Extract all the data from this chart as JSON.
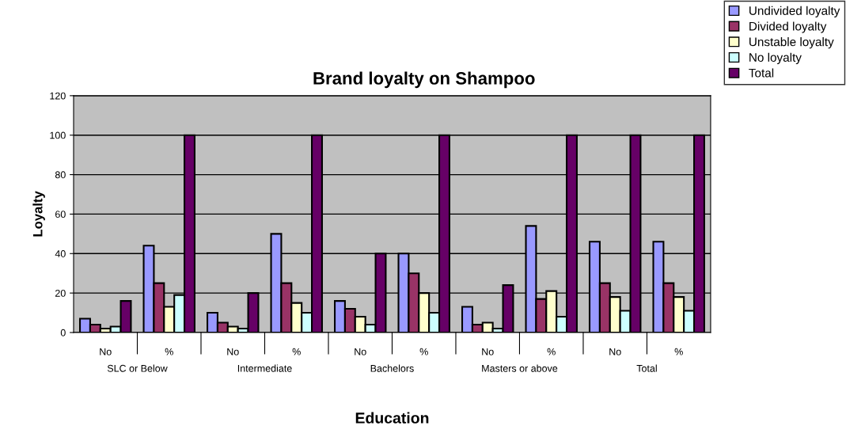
{
  "chart_data": {
    "type": "bar",
    "title": "Brand loyalty on Shampoo",
    "xlabel": "Education",
    "ylabel": "Loyalty",
    "categories": [
      "No",
      "%",
      "No",
      "%",
      "No",
      "%",
      "No",
      "%",
      "No",
      "%"
    ],
    "annotations": [
      "SLC or Below",
      "Intermediate",
      "Bachelors",
      "Masters or above",
      "Total"
    ],
    "series": [
      {
        "name": "Undivided loyalty",
        "color": "#9999ff",
        "values": [
          7,
          44,
          10,
          50,
          16,
          40,
          13,
          54,
          46,
          46
        ]
      },
      {
        "name": "Divided loyalty",
        "color": "#993366",
        "values": [
          4,
          25,
          5,
          25,
          12,
          30,
          4,
          17,
          25,
          25
        ]
      },
      {
        "name": "Unstable loyalty",
        "color": "#ffffcc",
        "values": [
          2,
          13,
          3,
          15,
          8,
          20,
          5,
          21,
          18,
          18
        ]
      },
      {
        "name": "No loyalty",
        "color": "#ccffff",
        "values": [
          3,
          19,
          2,
          10,
          4,
          10,
          2,
          8,
          11,
          11
        ]
      },
      {
        "name": "Total",
        "color": "#660066",
        "values": [
          16,
          100,
          20,
          100,
          40,
          100,
          24,
          100,
          100,
          100
        ]
      }
    ],
    "ylim": [
      0,
      120
    ],
    "yticks": [
      0,
      20,
      40,
      60,
      80,
      100,
      120
    ],
    "grid": "y",
    "legend": "top right"
  }
}
